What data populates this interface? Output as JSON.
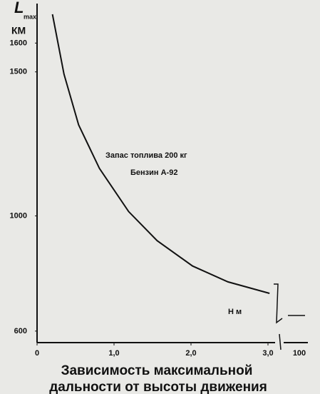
{
  "chart_data": {
    "type": "line",
    "title": [
      "Зависимость максимальной",
      "дальности от высоты движения"
    ],
    "ylabel": {
      "symbol": "L",
      "subscript": "max",
      "unit": "КМ"
    },
    "x": [
      0.2,
      0.35,
      0.54,
      0.81,
      1.19,
      1.56,
      2.02,
      2.48,
      3.02
    ],
    "values": [
      1700,
      1492,
      1316,
      1165,
      1015,
      914,
      826,
      771,
      731
    ],
    "color": "#111111",
    "xlim": [
      0,
      3.5
    ],
    "ylim": [
      560,
      1700
    ],
    "xticks": [
      0,
      {
        "value": 1,
        "label": "1,0"
      },
      {
        "value": 2,
        "label": "2,0"
      },
      {
        "value": 3,
        "label": "3,0"
      }
    ],
    "yticks": [
      600,
      1000,
      1500,
      1600
    ],
    "annotations": [
      "Запас топлива 200 кг",
      "Бензин А-92",
      "H м",
      "100"
    ]
  }
}
